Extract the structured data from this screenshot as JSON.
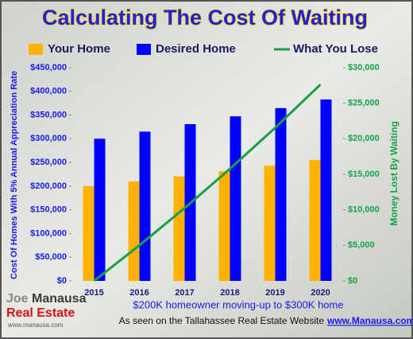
{
  "chart_data": {
    "type": "bar",
    "title": "Calculating The Cost Of Waiting",
    "ylabel": "Cost Of Homes With 5% Annual Appreciation Rate",
    "y2label": "Money Lost By Waiting",
    "categories": [
      "2015",
      "2016",
      "2017",
      "2018",
      "2019",
      "2020"
    ],
    "series": [
      {
        "name": "Your Home",
        "color": "#ffb300",
        "type": "bar",
        "values": [
          200000,
          210000,
          220500,
          231525,
          243101,
          255256
        ]
      },
      {
        "name": "Desired Home",
        "color": "#0000ff",
        "type": "bar",
        "values": [
          300000,
          315000,
          330750,
          347288,
          364652,
          382884
        ]
      },
      {
        "name": "What You Lose",
        "color": "#1a9e4a",
        "type": "line",
        "axis": "y2",
        "values": [
          0,
          5000,
          10250,
          15763,
          21551,
          27628
        ]
      }
    ],
    "ylim": [
      0,
      450000
    ],
    "yticks": [
      {
        "value": 0,
        "label": "$0"
      },
      {
        "value": 50000,
        "label": "$50,000"
      },
      {
        "value": 100000,
        "label": "$100,000"
      },
      {
        "value": 150000,
        "label": "$150,000"
      },
      {
        "value": 200000,
        "label": "$200,000"
      },
      {
        "value": 250000,
        "label": "$250,000"
      },
      {
        "value": 300000,
        "label": "$300,000"
      },
      {
        "value": 350000,
        "label": "$350,000"
      },
      {
        "value": 400000,
        "label": "$400,000"
      },
      {
        "value": 450000,
        "label": "$450,000"
      }
    ],
    "y2lim": [
      0,
      30000
    ],
    "y2ticks": [
      {
        "value": 0,
        "label": "$0"
      },
      {
        "value": 5000,
        "label": "$5,000"
      },
      {
        "value": 10000,
        "label": "$10,000"
      },
      {
        "value": 15000,
        "label": "$15,000"
      },
      {
        "value": 20000,
        "label": "$20,000"
      },
      {
        "value": 25000,
        "label": "$25,000"
      },
      {
        "value": 30000,
        "label": "$30,000"
      }
    ],
    "annotations": [
      "$200K homeowner moving-up to $300K home",
      "As seen on the Tallahassee Real Estate Website",
      "www.Manausa.com"
    ],
    "logo": [
      "Joe",
      "Manausa",
      "Real Estate",
      "www.manausa.com"
    ]
  }
}
